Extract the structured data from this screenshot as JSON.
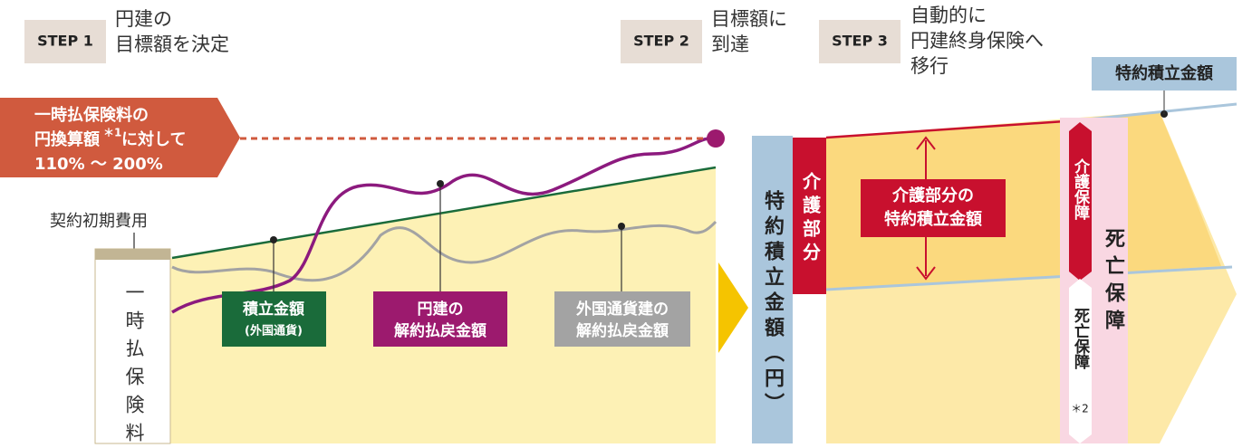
{
  "steps": [
    {
      "label": "STEP 1",
      "lines": [
        "円建の",
        "目標額を決定"
      ]
    },
    {
      "label": "STEP 2",
      "lines": [
        "目標額に",
        "到達"
      ]
    },
    {
      "label": "STEP 3",
      "lines": [
        "自動的に",
        "円建終身保険へ",
        "移行"
      ]
    }
  ],
  "target": {
    "line1": "一時払保険料の",
    "line2": "円換算額",
    "note": "＊1",
    "line2b": "に対して",
    "line3": "110% 〜 200%"
  },
  "initial_cost": "契約初期費用",
  "premium": "一時払保険料",
  "labels": {
    "reserve": [
      "積立金額",
      "(外国通貨)"
    ],
    "yen_refund": [
      "円建の",
      "解約払戻金額"
    ],
    "foreign_refund": [
      "外国通貨建の",
      "解約払戻金額"
    ]
  },
  "right": {
    "rider_tab": "特約積立金額",
    "rider_yen": "特約積立金額（円）",
    "care_part": "介護部分",
    "care_amount": [
      "介護部分の",
      "特約積立金額"
    ],
    "care_cover": "介護保障",
    "death_cover_small": "死亡保障",
    "death_note": "＊2",
    "death_cover": "死亡保障"
  }
}
